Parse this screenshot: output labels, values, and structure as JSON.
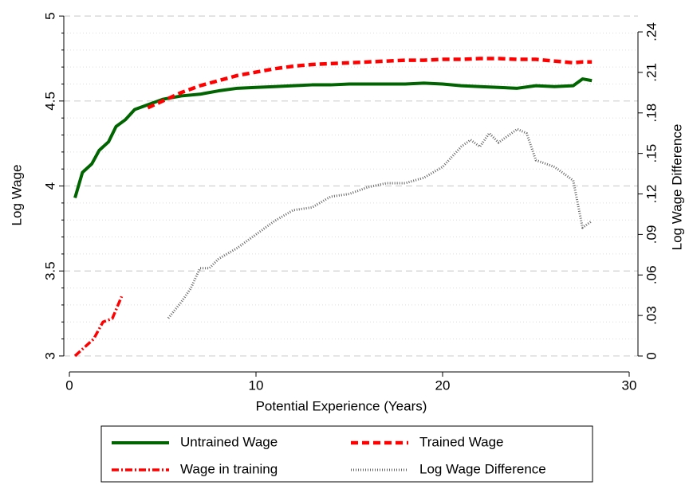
{
  "chart_data": {
    "type": "line",
    "x_label": "Potential Experience (Years)",
    "y_label": "Log Wage",
    "y2_label": "Log Wage Difference",
    "xlim": [
      -0.3,
      30.47
    ],
    "xticks": [
      0,
      10,
      20,
      30
    ],
    "ylim": [
      2.906,
      5.01
    ],
    "yticks": [
      3,
      3.5,
      4,
      4.5,
      5
    ],
    "yminorticks": [
      3.1,
      3.2,
      3.3,
      3.4,
      3.6,
      3.7,
      3.8,
      3.9,
      4.1,
      4.2,
      4.3,
      4.4,
      4.6,
      4.7,
      4.8,
      4.9
    ],
    "y2lim": [
      -0.0118,
      0.253
    ],
    "y2ticks": [
      0,
      {
        "value": 0.03,
        "label": ".03"
      },
      {
        "value": 0.06,
        "label": ".06"
      },
      {
        "value": 0.09,
        "label": ".09"
      },
      {
        "value": 0.12,
        "label": ".12"
      },
      {
        "value": 0.15,
        "label": ".15"
      },
      {
        "value": 0.18,
        "label": ".18"
      },
      {
        "value": 0.21,
        "label": ".21"
      },
      {
        "value": 0.24,
        "label": ".24"
      }
    ],
    "grid": true,
    "legend_position": "bottom",
    "series": [
      {
        "name": "Untrained Wage",
        "color": "#006400",
        "style": "solid",
        "x": [
          0.3,
          0.7,
          1.2,
          1.6,
          2.1,
          2.5,
          3.0,
          3.5,
          4.0,
          4.5,
          5,
          5.5,
          6,
          7,
          8,
          9,
          10,
          11,
          12,
          13,
          14,
          15,
          16,
          17,
          18,
          19,
          20,
          21,
          22,
          23,
          24,
          25,
          26,
          27,
          27.5,
          28
        ],
        "values": [
          3.93,
          4.08,
          4.13,
          4.21,
          4.26,
          4.35,
          4.39,
          4.45,
          4.47,
          4.49,
          4.51,
          4.52,
          4.53,
          4.54,
          4.56,
          4.575,
          4.58,
          4.585,
          4.59,
          4.595,
          4.595,
          4.6,
          4.6,
          4.6,
          4.6,
          4.605,
          4.6,
          4.59,
          4.585,
          4.58,
          4.575,
          4.59,
          4.585,
          4.59,
          4.63,
          4.62
        ]
      },
      {
        "name": "Trained Wage",
        "color": "#ff0000",
        "style": "dash",
        "x": [
          4.2,
          5,
          6,
          7,
          8,
          9,
          10,
          11,
          12,
          13,
          14,
          15,
          16,
          17,
          18,
          19,
          20,
          21,
          22,
          23,
          24,
          25,
          26,
          27,
          27.5,
          28
        ],
        "values": [
          4.46,
          4.5,
          4.55,
          4.59,
          4.62,
          4.65,
          4.67,
          4.69,
          4.705,
          4.715,
          4.72,
          4.725,
          4.73,
          4.735,
          4.74,
          4.74,
          4.745,
          4.745,
          4.75,
          4.75,
          4.745,
          4.745,
          4.735,
          4.725,
          4.73,
          4.73
        ]
      },
      {
        "name": "Wage in training",
        "color": "#ff0000",
        "style": "dashdot",
        "x": [
          0.3,
          0.8,
          1.3,
          1.8,
          2.3,
          2.8
        ],
        "values": [
          3.0,
          3.05,
          3.1,
          3.2,
          3.22,
          3.35
        ]
      },
      {
        "name": "Log Wage Difference",
        "color": "#666666",
        "style": "dot",
        "axis": "y2",
        "x": [
          5.3,
          6,
          6.5,
          7,
          7.5,
          8,
          9,
          10,
          11,
          12,
          13,
          14,
          15,
          16,
          17,
          18,
          19,
          20,
          21,
          21.5,
          22,
          22.5,
          23,
          24,
          24.5,
          25,
          26,
          26.5,
          27,
          27.5,
          28
        ],
        "values": [
          0.028,
          0.04,
          0.05,
          0.065,
          0.065,
          0.072,
          0.08,
          0.09,
          0.1,
          0.108,
          0.11,
          0.118,
          0.12,
          0.125,
          0.128,
          0.128,
          0.132,
          0.14,
          0.155,
          0.16,
          0.155,
          0.165,
          0.158,
          0.168,
          0.165,
          0.145,
          0.14,
          0.135,
          0.13,
          0.095,
          0.1
        ]
      }
    ]
  }
}
